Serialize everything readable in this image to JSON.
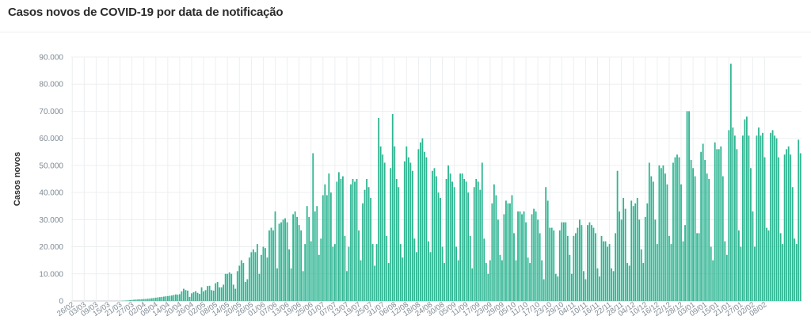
{
  "title": "Casos novos de COVID-19 por data de notificação",
  "chart_data": {
    "type": "bar",
    "title": "Casos novos de COVID-19 por data de notificação",
    "xlabel": "",
    "ylabel": "Casos novos",
    "ylim": [
      0,
      90000
    ],
    "grid": true,
    "color": "#2eb592",
    "y_ticks": [
      "0",
      "10.000",
      "20.000",
      "30.000",
      "40.000",
      "50.000",
      "60.000",
      "70.000",
      "80.000",
      "90.000"
    ],
    "x_ticks": [
      "26/02",
      "03/03",
      "09/03",
      "15/03",
      "21/03",
      "27/03",
      "02/04",
      "08/04",
      "14/04",
      "20/04",
      "26/04",
      "02/05",
      "08/05",
      "14/05",
      "20/05",
      "26/05",
      "01/06",
      "07/06",
      "13/06",
      "19/06",
      "25/06",
      "01/07",
      "07/07",
      "13/07",
      "19/07",
      "25/07",
      "31/07",
      "06/08",
      "12/08",
      "18/08",
      "24/08",
      "30/08",
      "05/09",
      "11/09",
      "17/09",
      "23/09",
      "29/09",
      "05/10",
      "11/10",
      "17/10",
      "23/10",
      "29/10",
      "04/11",
      "10/11",
      "16/11",
      "22/11",
      "28/11",
      "04/12",
      "10/12",
      "16/12",
      "22/12",
      "28/12",
      "03/01",
      "09/01",
      "15/01",
      "21/01",
      "27/01",
      "02/02",
      "08/02"
    ],
    "values": [
      0,
      0,
      0,
      0,
      0,
      0,
      0,
      0,
      0,
      0,
      0,
      0,
      0,
      0,
      0,
      0,
      0,
      0,
      0,
      0,
      0,
      0,
      0,
      0,
      20,
      50,
      90,
      150,
      220,
      300,
      380,
      450,
      500,
      550,
      600,
      650,
      700,
      750,
      800,
      900,
      1000,
      1100,
      1200,
      1300,
      1400,
      1500,
      1600,
      1700,
      1800,
      1900,
      2000,
      2200,
      2400,
      2300,
      2500,
      3500,
      4500,
      4000,
      3800,
      1500,
      2800,
      3200,
      3600,
      3000,
      2600,
      5000,
      3500,
      4000,
      5500,
      5600,
      4000,
      3800,
      6500,
      7000,
      5000,
      5000,
      6000,
      10000,
      10000,
      10500,
      10000,
      6000,
      4500,
      11000,
      13000,
      15000,
      14000,
      7000,
      8000,
      16000,
      18000,
      19000,
      18000,
      21000,
      10000,
      17000,
      20000,
      19500,
      16000,
      26000,
      27000,
      26000,
      33000,
      12000,
      28500,
      29000,
      30000,
      30500,
      29000,
      19000,
      12000,
      32000,
      33000,
      31000,
      28000,
      26000,
      11000,
      21000,
      35000,
      31000,
      22000,
      54500,
      33000,
      35000,
      17000,
      23000,
      39000,
      43000,
      39000,
      47000,
      40000,
      20000,
      21000,
      44000,
      47500,
      45000,
      46000,
      24000,
      11000,
      20000,
      43000,
      45000,
      44000,
      45000,
      26000,
      15000,
      36000,
      41000,
      45000,
      42000,
      38000,
      21000,
      13000,
      21000,
      67500,
      57000,
      54000,
      51000,
      24000,
      14000,
      49000,
      69000,
      57000,
      45000,
      42000,
      21000,
      16000,
      51500,
      57000,
      53000,
      51000,
      48000,
      23000,
      18000,
      56000,
      58500,
      60000,
      55000,
      53000,
      22000,
      18000,
      48000,
      49000,
      46000,
      40000,
      38000,
      20000,
      14000,
      45000,
      50000,
      47000,
      44000,
      42000,
      20000,
      15000,
      47000,
      47000,
      45000,
      44000,
      40000,
      24000,
      12000,
      42000,
      45000,
      44000,
      41000,
      51000,
      23000,
      14000,
      10000,
      15000,
      36000,
      43000,
      39000,
      30000,
      17000,
      15000,
      32000,
      37000,
      36000,
      36000,
      39000,
      25000,
      15000,
      33000,
      33000,
      32000,
      33000,
      29000,
      16000,
      14000,
      32000,
      34000,
      33000,
      30000,
      25000,
      15000,
      8000,
      42000,
      37000,
      27000,
      27000,
      26000,
      10000,
      9000,
      26000,
      29000,
      29000,
      29000,
      24000,
      17000,
      10000,
      24000,
      25000,
      27000,
      30000,
      28000,
      11000,
      8000,
      28000,
      29000,
      28000,
      27000,
      25000,
      12000,
      9000,
      24000,
      22000,
      22000,
      20000,
      21000,
      12000,
      11000,
      25000,
      48000,
      33000,
      30000,
      38000,
      34000,
      14000,
      13000,
      37000,
      35000,
      36000,
      38000,
      30000,
      19000,
      14000,
      31000,
      36000,
      51000,
      46000,
      44000,
      30000,
      21000,
      50000,
      49000,
      50000,
      47000,
      43000,
      24000,
      21000,
      51000,
      53000,
      54000,
      53000,
      43000,
      22000,
      28000,
      70000,
      70000,
      52000,
      49000,
      46000,
      25000,
      25000,
      55000,
      58000,
      52000,
      47000,
      45000,
      20000,
      15000,
      58500,
      56000,
      56000,
      57000,
      46000,
      22000,
      17000,
      63000,
      87500,
      64000,
      61000,
      56000,
      26000,
      20000,
      61000,
      67000,
      68000,
      61000,
      49000,
      33000,
      20000,
      61000,
      64000,
      61000,
      62000,
      53000,
      27000,
      26000,
      62000,
      63000,
      61000,
      60000,
      53000,
      25000,
      21000,
      54000,
      56000,
      57000,
      54000,
      42000,
      23000,
      21000,
      59500,
      54500
    ]
  }
}
